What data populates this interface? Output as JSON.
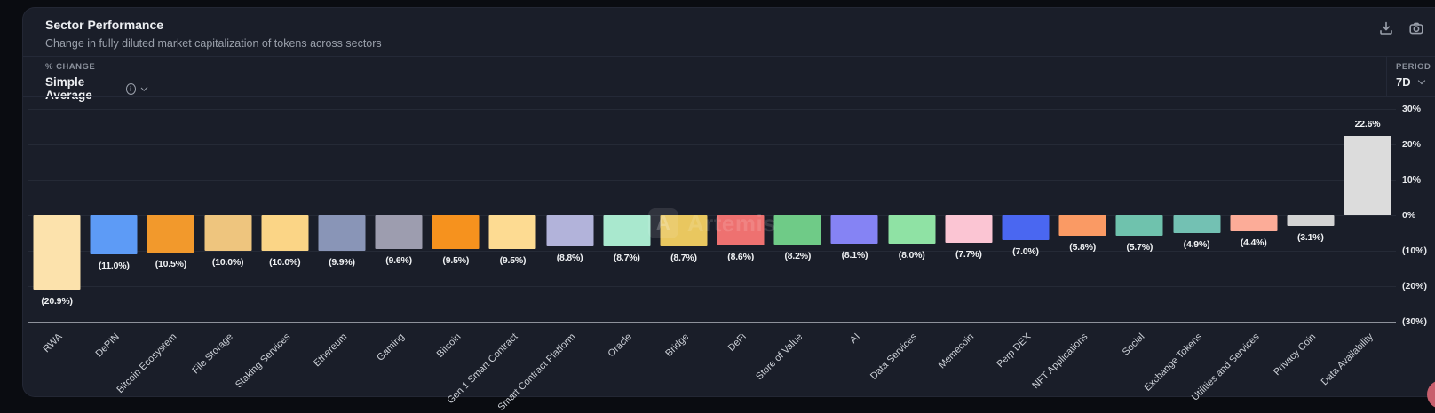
{
  "header": {
    "title": "Sector Performance",
    "subtitle": "Change in fully diluted market capitalization of tokens across sectors",
    "icons": [
      "download-icon",
      "camera-icon"
    ]
  },
  "controls": {
    "metric": {
      "label": "% CHANGE",
      "value": "Simple Average"
    },
    "period": {
      "label": "PERIOD",
      "value": "7D"
    }
  },
  "watermark": {
    "logo_letter": "A",
    "brand": "Artemis"
  },
  "chart_data": {
    "type": "bar",
    "title": "Sector Performance",
    "ylim": [
      -30,
      30
    ],
    "grid": true,
    "y_axis_side": "right",
    "x_label_rotation": 45,
    "y_ticks": [
      {
        "label": "30%",
        "value": 30
      },
      {
        "label": "20%",
        "value": 20
      },
      {
        "label": "10%",
        "value": 10
      },
      {
        "label": "0%",
        "value": 0
      },
      {
        "label": "(10%)",
        "value": -10
      },
      {
        "label": "(20%)",
        "value": -20
      },
      {
        "label": "(30%)",
        "value": -30
      }
    ],
    "bars": [
      {
        "category": "RWA",
        "value": -20.9,
        "label": "(20.9%)",
        "color": "#fce2ac"
      },
      {
        "category": "DePIN",
        "value": -11.0,
        "label": "(11.0%)",
        "color": "#5d9bf6"
      },
      {
        "category": "Bitcoin Ecosystem",
        "value": -10.5,
        "label": "(10.5%)",
        "color": "#f2992c"
      },
      {
        "category": "File Storage",
        "value": -10.0,
        "label": "(10.0%)",
        "color": "#eec57e"
      },
      {
        "category": "Staking Services",
        "value": -10.0,
        "label": "(10.0%)",
        "color": "#fbd586"
      },
      {
        "category": "Ethereum",
        "value": -9.9,
        "label": "(9.9%)",
        "color": "#8995b7"
      },
      {
        "category": "Gaming",
        "value": -9.6,
        "label": "(9.6%)",
        "color": "#9d9daf"
      },
      {
        "category": "Bitcoin",
        "value": -9.5,
        "label": "(9.5%)",
        "color": "#f6921e"
      },
      {
        "category": "Gen 1 Smart Contract",
        "value": -9.5,
        "label": "(9.5%)",
        "color": "#fddb92"
      },
      {
        "category": "Smart Contract Platform",
        "value": -8.8,
        "label": "(8.8%)",
        "color": "#b2b3da"
      },
      {
        "category": "Oracle",
        "value": -8.7,
        "label": "(8.7%)",
        "color": "#a9e8ce"
      },
      {
        "category": "Bridge",
        "value": -8.7,
        "label": "(8.7%)",
        "color": "#e9c75f"
      },
      {
        "category": "DeFi",
        "value": -8.6,
        "label": "(8.6%)",
        "color": "#ee7170"
      },
      {
        "category": "Store of Value",
        "value": -8.2,
        "label": "(8.2%)",
        "color": "#6fcb87"
      },
      {
        "category": "AI",
        "value": -8.1,
        "label": "(8.1%)",
        "color": "#8583f4"
      },
      {
        "category": "Data Services",
        "value": -8.0,
        "label": "(8.0%)",
        "color": "#8fe2a4"
      },
      {
        "category": "Memecoin",
        "value": -7.7,
        "label": "(7.7%)",
        "color": "#fbc5d3"
      },
      {
        "category": "Perp DEX",
        "value": -7.0,
        "label": "(7.0%)",
        "color": "#4a67f1"
      },
      {
        "category": "NFT Applications",
        "value": -5.8,
        "label": "(5.8%)",
        "color": "#fa9a64"
      },
      {
        "category": "Social",
        "value": -5.7,
        "label": "(5.7%)",
        "color": "#6fc2ad"
      },
      {
        "category": "Exchange Tokens",
        "value": -4.9,
        "label": "(4.9%)",
        "color": "#73c1b3"
      },
      {
        "category": "Utilities and Services",
        "value": -4.4,
        "label": "(4.4%)",
        "color": "#fcac98"
      },
      {
        "category": "Privacy Coin",
        "value": -3.1,
        "label": "(3.1%)",
        "color": "#d3d3d3"
      },
      {
        "category": "Data Availability",
        "value": 22.6,
        "label": "22.6%",
        "color": "#dcdcdc"
      }
    ]
  }
}
